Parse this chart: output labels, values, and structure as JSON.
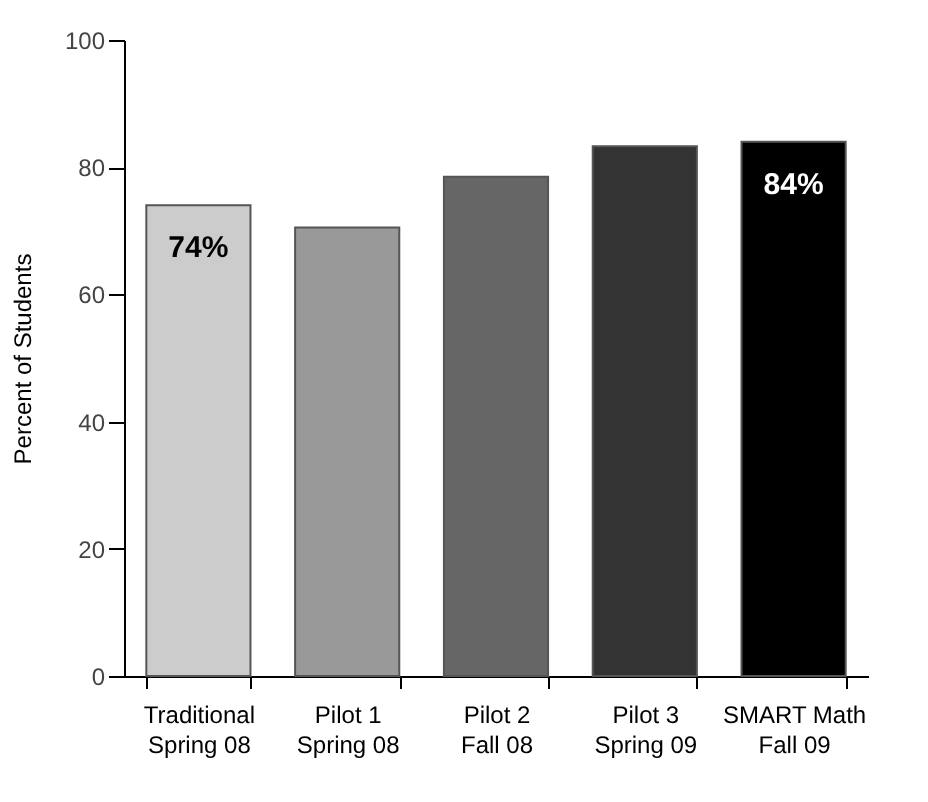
{
  "chart_data": {
    "type": "bar",
    "ylabel": "Percent of Students",
    "categories": [
      "Traditional\nSpring 08",
      "Pilot 1\nSpring 08",
      "Pilot 2\nFall 08",
      "Pilot 3\nSpring 09",
      "SMART Math\nFall 09"
    ],
    "values": [
      74,
      70.5,
      78.5,
      83.3,
      84
    ],
    "colors": [
      "#cccccc",
      "#999999",
      "#666666",
      "#333333",
      "#000000"
    ],
    "value_labels": [
      "74%",
      null,
      null,
      null,
      "84%"
    ],
    "ylim": [
      0,
      100
    ],
    "yticks": [
      0,
      20,
      40,
      60,
      80,
      100
    ],
    "grid": false
  }
}
